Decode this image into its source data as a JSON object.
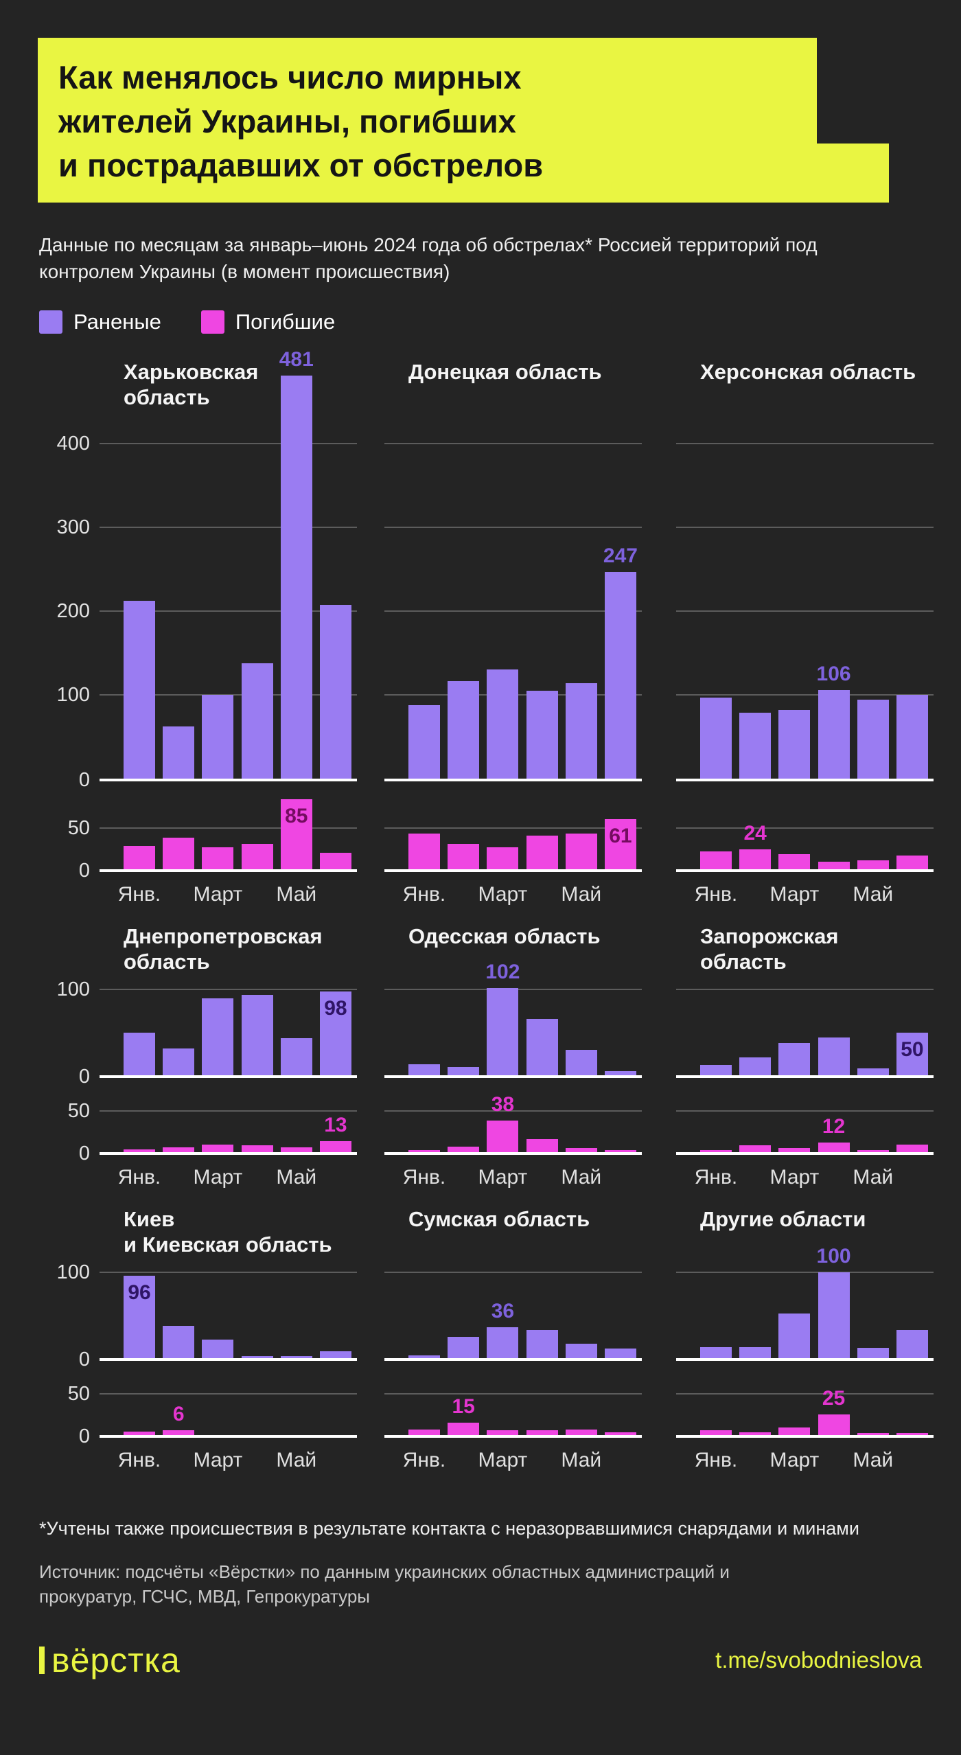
{
  "header": {
    "title_lines": [
      "Как менялось число мирных",
      "жителей Украины, погибших",
      "и пострадавших от обстрелов"
    ],
    "subtitle": "Данные по месяцам за январь–июнь 2024 года об обстрелах* Россией территорий под контролем Украины (в момент происшествия)",
    "legend": {
      "injured": "Раненые",
      "killed": "Погибшие"
    }
  },
  "colors": {
    "injured": "#9a7cf2",
    "killed": "#ef46e2",
    "highlight_yellow": "#e9f542",
    "background": "#242424",
    "injured_label": "#7e62dd",
    "killed_label": "#e435cf"
  },
  "chart_data": {
    "type": "bar",
    "title": "Как менялось число мирных жителей Украины, погибших и пострадавших от обстрелов",
    "period": "январь–июнь 2024",
    "series_names": [
      "Раненые",
      "Погибшие"
    ],
    "x_tick_labels": [
      "Янв.",
      "Март",
      "Май"
    ],
    "axes": {
      "row1_injured_ticks": [
        400,
        300,
        200,
        100,
        0
      ],
      "small_injured_ticks": [
        100,
        0
      ],
      "killed_ticks": [
        50,
        0
      ]
    },
    "regions": [
      {
        "name": "Харьковская область",
        "title_lines": [
          "Харьковская",
          "область"
        ],
        "injured": {
          "values": [
            212,
            62,
            100,
            138,
            481,
            207
          ],
          "label": "481",
          "label_index": 4,
          "label_inside": false
        },
        "killed": {
          "values": [
            28,
            38,
            27,
            31,
            85,
            20
          ],
          "label": "85",
          "label_index": 4,
          "label_inside": true
        }
      },
      {
        "name": "Донецкая область",
        "title_lines": [
          "Донецкая область"
        ],
        "injured": {
          "values": [
            88,
            116,
            130,
            105,
            114,
            247
          ],
          "label": "247",
          "label_index": 5,
          "label_inside": false
        },
        "killed": {
          "values": [
            43,
            31,
            27,
            41,
            43,
            61
          ],
          "label": "61",
          "label_index": 5,
          "label_inside": true
        }
      },
      {
        "name": "Херсонская область",
        "title_lines": [
          "Херсонская область"
        ],
        "injured": {
          "values": [
            97,
            79,
            82,
            106,
            94,
            100
          ],
          "label": "106",
          "label_index": 3,
          "label_inside": false
        },
        "killed": {
          "values": [
            22,
            24,
            18,
            9,
            11,
            17
          ],
          "label": "24",
          "label_index": 1,
          "label_inside": false
        }
      },
      {
        "name": "Днепропетровская область",
        "title_lines": [
          "Днепропетровская",
          "область"
        ],
        "injured": {
          "values": [
            50,
            31,
            90,
            94,
            43,
            98
          ],
          "label": "98",
          "label_index": 5,
          "label_inside": true
        },
        "killed": {
          "values": [
            3,
            6,
            9,
            8,
            6,
            13
          ],
          "label": "13",
          "label_index": 5,
          "label_inside": false
        }
      },
      {
        "name": "Одесская область",
        "title_lines": [
          "Одесская область"
        ],
        "injured": {
          "values": [
            13,
            10,
            102,
            66,
            30,
            5
          ],
          "label": "102",
          "label_index": 2,
          "label_inside": false
        },
        "killed": {
          "values": [
            1,
            7,
            38,
            16,
            5,
            1
          ],
          "label": "38",
          "label_index": 2,
          "label_inside": false
        }
      },
      {
        "name": "Запорожская область",
        "title_lines": [
          "Запорожская",
          "область"
        ],
        "injured": {
          "values": [
            12,
            21,
            38,
            44,
            8,
            50
          ],
          "label": "50",
          "label_index": 5,
          "label_inside": true
        },
        "killed": {
          "values": [
            2,
            8,
            5,
            12,
            2,
            9
          ],
          "label": "12",
          "label_index": 3,
          "label_inside": false
        }
      },
      {
        "name": "Киев и Киевская область",
        "title_lines": [
          "Киев",
          "и Киевская область"
        ],
        "injured": {
          "values": [
            96,
            38,
            22,
            1,
            2,
            8
          ],
          "label": "96",
          "label_index": 0,
          "label_inside": true
        },
        "killed": {
          "values": [
            4,
            6,
            0,
            0,
            0,
            0
          ],
          "label": "6",
          "label_index": 1,
          "label_inside": false
        }
      },
      {
        "name": "Сумская область",
        "title_lines": [
          "Сумская область"
        ],
        "injured": {
          "values": [
            3,
            25,
            36,
            33,
            17,
            11
          ],
          "label": "36",
          "label_index": 2,
          "label_inside": false
        },
        "killed": {
          "values": [
            7,
            15,
            6,
            6,
            7,
            3
          ],
          "label": "15",
          "label_index": 1,
          "label_inside": false
        }
      },
      {
        "name": "Другие области",
        "title_lines": [
          "Другие области"
        ],
        "injured": {
          "values": [
            13,
            13,
            52,
            100,
            12,
            33
          ],
          "label": "100",
          "label_index": 3,
          "label_inside": false
        },
        "killed": {
          "values": [
            6,
            3,
            9,
            25,
            2,
            2
          ],
          "label": "25",
          "label_index": 3,
          "label_inside": false
        }
      }
    ]
  },
  "footer": {
    "footnote": "*Учтены также происшествия в результате контакта с неразорвавшимися снарядами и минами",
    "source": "Источник: подсчёты «Вёрстки» по данным украинских областных администраций и прокуратур, ГСЧС, МВД, Гепрокуратуры",
    "logo_text": "вёрстка",
    "link": "t.me/svobodnieslova"
  }
}
